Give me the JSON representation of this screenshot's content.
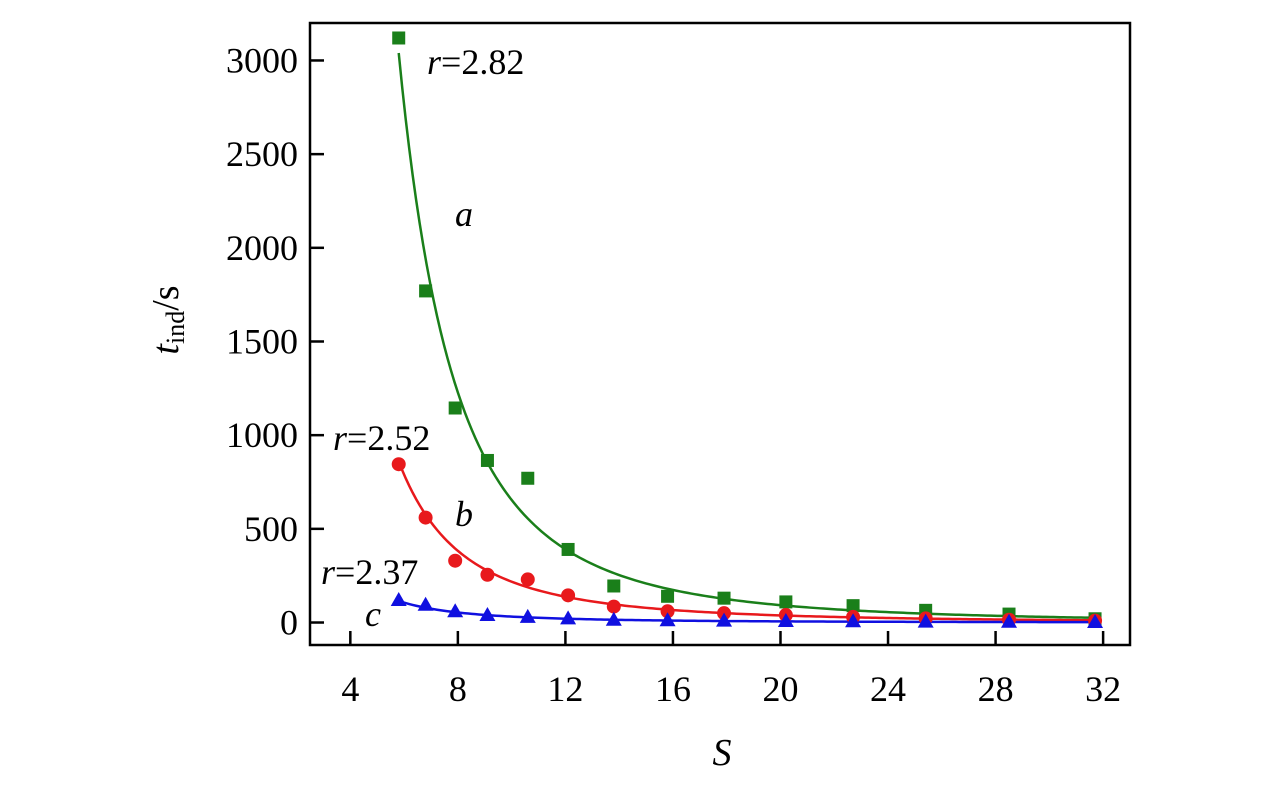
{
  "chart_data": {
    "type": "scatter",
    "xlabel": "S",
    "ylabel_main": "t",
    "ylabel_sub": "ind",
    "ylabel_unit": "/s",
    "xlim": [
      2.5,
      33
    ],
    "ylim": [
      -120,
      3200
    ],
    "xticks": [
      4,
      8,
      12,
      16,
      20,
      24,
      28,
      32
    ],
    "yticks": [
      0,
      500,
      1000,
      1500,
      2000,
      2500,
      3000
    ],
    "grid": false,
    "series": [
      {
        "label": "a",
        "annotation_var": "r",
        "annotation_val": "=2.82",
        "color": "#1a7f1a",
        "marker": "square",
        "x": [
          5.8,
          6.8,
          7.9,
          9.1,
          10.6,
          12.1,
          13.8,
          15.8,
          17.9,
          20.2,
          22.7,
          25.4,
          28.5,
          31.7
        ],
        "y": [
          3120,
          1770,
          1145,
          865,
          770,
          390,
          195,
          140,
          130,
          110,
          90,
          65,
          45,
          20
        ],
        "fit": {
          "A": 3040,
          "S0": 5.8,
          "n": 2.82
        }
      },
      {
        "label": "b",
        "annotation_var": "r",
        "annotation_val": "=2.52",
        "color": "#e8191c",
        "marker": "circle",
        "x": [
          5.8,
          6.8,
          7.9,
          9.1,
          10.6,
          12.1,
          13.8,
          15.8,
          17.9,
          20.2,
          22.7,
          25.4,
          28.5,
          31.7
        ],
        "y": [
          845,
          560,
          330,
          255,
          230,
          145,
          85,
          60,
          50,
          40,
          30,
          22,
          15,
          10
        ],
        "fit": {
          "A": 860,
          "S0": 5.8,
          "n": 2.52
        }
      },
      {
        "label": "c",
        "annotation_var": "r",
        "annotation_val": "=2.37",
        "color": "#1010e0",
        "marker": "triangle",
        "x": [
          5.8,
          6.8,
          7.9,
          9.1,
          10.6,
          12.1,
          13.8,
          15.8,
          17.9,
          20.2,
          22.7,
          25.4,
          28.5,
          31.7
        ],
        "y": [
          120,
          95,
          60,
          40,
          30,
          22,
          15,
          12,
          10,
          8,
          7,
          5,
          4,
          3
        ],
        "fit": {
          "A": 115,
          "S0": 5.8,
          "n": 2.37
        }
      }
    ]
  }
}
